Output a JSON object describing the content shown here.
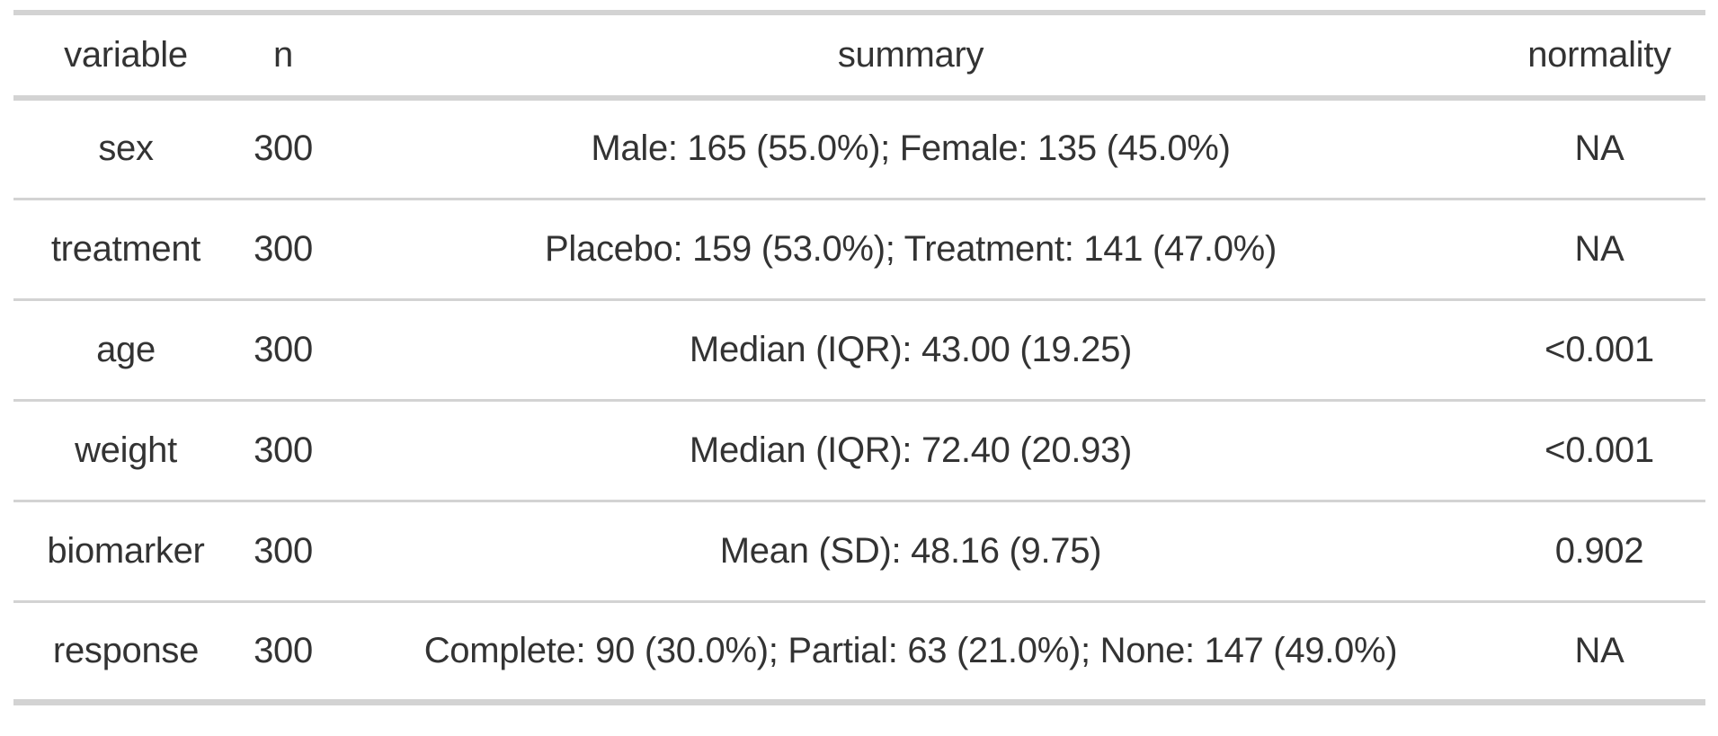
{
  "chart_data": {
    "type": "table",
    "columns": [
      "variable",
      "n",
      "summary",
      "normality"
    ],
    "rows": [
      [
        "sex",
        "300",
        "Male: 165 (55.0%); Female: 135 (45.0%)",
        "NA"
      ],
      [
        "treatment",
        "300",
        "Placebo: 159 (53.0%); Treatment: 141 (47.0%)",
        "NA"
      ],
      [
        "age",
        "300",
        "Median (IQR): 43.00 (19.25)",
        "<0.001"
      ],
      [
        "weight",
        "300",
        "Median (IQR): 72.40 (20.93)",
        "<0.001"
      ],
      [
        "biomarker",
        "300",
        "Mean (SD): 48.16 (9.75)",
        "0.902"
      ],
      [
        "response",
        "300",
        "Complete: 90 (30.0%); Partial: 63 (21.0%); None: 147 (49.0%)",
        "NA"
      ]
    ],
    "layout_hints": {
      "alignment": "center",
      "grid": "horizontal-rules-only",
      "header_position": "top"
    }
  },
  "colors": {
    "background": "#ffffff",
    "text": "#333333",
    "rule": "#d3d3d3"
  }
}
